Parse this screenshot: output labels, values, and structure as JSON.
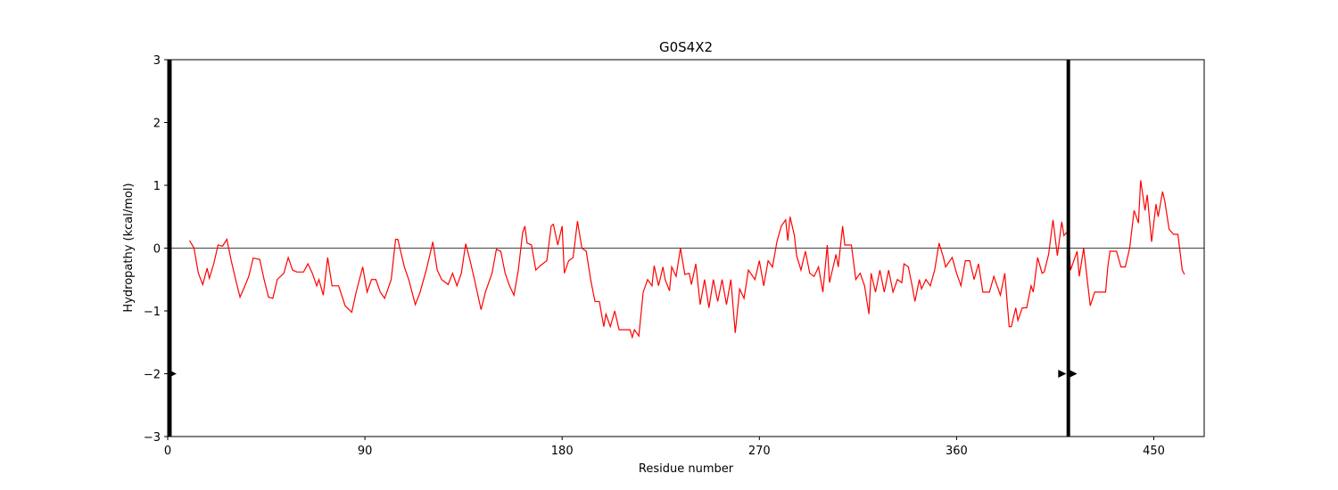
{
  "chart_data": {
    "type": "line",
    "title": "G0S4X2",
    "x_label": "Residue number",
    "y_label": "Hydropathy (kcal/mol)",
    "xlim": [
      0,
      473
    ],
    "ylim": [
      -3,
      3
    ],
    "xticks": [
      0,
      90,
      180,
      270,
      360,
      450
    ],
    "yticks": [
      {
        "value": -3,
        "label": "−3"
      },
      {
        "value": -2,
        "label": "−2"
      },
      {
        "value": -1,
        "label": "−1"
      },
      0,
      1,
      2,
      3
    ],
    "hline": 0,
    "vlines": [
      1,
      411
    ],
    "vline_color": "#000000",
    "arrows": {
      "x": [
        2,
        408,
        413
      ],
      "y": [
        -2,
        -2,
        -2
      ]
    },
    "series": [
      {
        "color": "#ff0000",
        "x": [
          10,
          12,
          14,
          16,
          18,
          19,
          21,
          23,
          25,
          27,
          29,
          31,
          33,
          35,
          37,
          39,
          42,
          44,
          46,
          48,
          50,
          53,
          55,
          57,
          59,
          62,
          64,
          66,
          68,
          69,
          71,
          73,
          75,
          78,
          81,
          84,
          86,
          89,
          91,
          93,
          95,
          97,
          99,
          102,
          104,
          105,
          108,
          110,
          113,
          115,
          118,
          121,
          123,
          125,
          128,
          130,
          132,
          134,
          136,
          138,
          140,
          143,
          145,
          148,
          150,
          152,
          154,
          156,
          158,
          160,
          162,
          163,
          164,
          166,
          168,
          170,
          173,
          175,
          176,
          178,
          180,
          181,
          183,
          185,
          187,
          189,
          191,
          193,
          195,
          197,
          199,
          200,
          202,
          204,
          206,
          208,
          211,
          212,
          213,
          215,
          217,
          219,
          221,
          222,
          224,
          226,
          227,
          229,
          230,
          232,
          234,
          236,
          238,
          239,
          241,
          243,
          245,
          247,
          249,
          251,
          253,
          255,
          257,
          259,
          261,
          263,
          265,
          268,
          270,
          272,
          274,
          276,
          278,
          280,
          282,
          283,
          284,
          286,
          287,
          289,
          291,
          293,
          295,
          297,
          299,
          301,
          302,
          305,
          306,
          308,
          309,
          312,
          314,
          316,
          318,
          320,
          321,
          323,
          325,
          327,
          329,
          331,
          333,
          335,
          336,
          338,
          340,
          341,
          343,
          344,
          346,
          348,
          350,
          352,
          354,
          355,
          358,
          360,
          362,
          364,
          366,
          368,
          370,
          372,
          375,
          377,
          380,
          382,
          384,
          385,
          387,
          388,
          390,
          392,
          394,
          395,
          397,
          399,
          400,
          402,
          404,
          406,
          408,
          409,
          411,
          412,
          415,
          416,
          418,
          421,
          423,
          428,
          429,
          430,
          433,
          435,
          437,
          439,
          441,
          443,
          444,
          446,
          447,
          449,
          451,
          452,
          454,
          455,
          457,
          459,
          461,
          463,
          464
        ],
        "values": [
          0.12,
          0.0,
          -0.4,
          -0.58,
          -0.32,
          -0.48,
          -0.25,
          0.05,
          0.03,
          0.14,
          -0.2,
          -0.5,
          -0.78,
          -0.62,
          -0.45,
          -0.16,
          -0.18,
          -0.5,
          -0.78,
          -0.8,
          -0.5,
          -0.4,
          -0.15,
          -0.35,
          -0.38,
          -0.38,
          -0.25,
          -0.4,
          -0.6,
          -0.5,
          -0.75,
          -0.15,
          -0.6,
          -0.6,
          -0.92,
          -1.02,
          -0.7,
          -0.3,
          -0.7,
          -0.5,
          -0.5,
          -0.7,
          -0.8,
          -0.5,
          0.14,
          0.14,
          -0.3,
          -0.5,
          -0.9,
          -0.72,
          -0.35,
          0.1,
          -0.35,
          -0.5,
          -0.58,
          -0.4,
          -0.6,
          -0.4,
          0.07,
          -0.2,
          -0.5,
          -0.98,
          -0.7,
          -0.4,
          -0.02,
          -0.05,
          -0.4,
          -0.6,
          -0.75,
          -0.35,
          0.25,
          0.35,
          0.08,
          0.05,
          -0.35,
          -0.28,
          -0.2,
          0.35,
          0.38,
          0.05,
          0.35,
          -0.4,
          -0.2,
          -0.15,
          0.43,
          0.0,
          -0.05,
          -0.5,
          -0.85,
          -0.85,
          -1.25,
          -1.05,
          -1.25,
          -1.0,
          -1.3,
          -1.3,
          -1.3,
          -1.42,
          -1.3,
          -1.4,
          -0.7,
          -0.5,
          -0.6,
          -0.28,
          -0.6,
          -0.3,
          -0.5,
          -0.68,
          -0.3,
          -0.45,
          0.0,
          -0.42,
          -0.4,
          -0.58,
          -0.25,
          -0.9,
          -0.5,
          -0.95,
          -0.5,
          -0.85,
          -0.5,
          -0.9,
          -0.5,
          -1.35,
          -0.65,
          -0.8,
          -0.35,
          -0.5,
          -0.2,
          -0.6,
          -0.2,
          -0.3,
          0.1,
          0.35,
          0.45,
          0.12,
          0.5,
          0.2,
          -0.12,
          -0.35,
          -0.05,
          -0.4,
          -0.45,
          -0.3,
          -0.7,
          0.05,
          -0.55,
          -0.1,
          -0.3,
          0.35,
          0.05,
          0.05,
          -0.5,
          -0.4,
          -0.6,
          -1.05,
          -0.4,
          -0.7,
          -0.35,
          -0.7,
          -0.35,
          -0.7,
          -0.5,
          -0.55,
          -0.25,
          -0.3,
          -0.65,
          -0.85,
          -0.5,
          -0.65,
          -0.5,
          -0.6,
          -0.35,
          0.08,
          -0.15,
          -0.3,
          -0.15,
          -0.4,
          -0.6,
          -0.2,
          -0.2,
          -0.5,
          -0.25,
          -0.7,
          -0.7,
          -0.45,
          -0.75,
          -0.4,
          -1.25,
          -1.25,
          -0.95,
          -1.15,
          -0.95,
          -0.95,
          -0.6,
          -0.7,
          -0.15,
          -0.4,
          -0.38,
          -0.1,
          0.45,
          -0.12,
          0.42,
          0.2,
          0.28,
          -0.35,
          -0.05,
          -0.45,
          0.0,
          -0.92,
          -0.7,
          -0.7,
          -0.3,
          -0.05,
          -0.05,
          -0.3,
          -0.3,
          0.0,
          0.6,
          0.4,
          1.08,
          0.6,
          0.85,
          0.1,
          0.7,
          0.5,
          0.9,
          0.75,
          0.3,
          0.22,
          0.22,
          -0.35,
          -0.42
        ]
      }
    ]
  }
}
